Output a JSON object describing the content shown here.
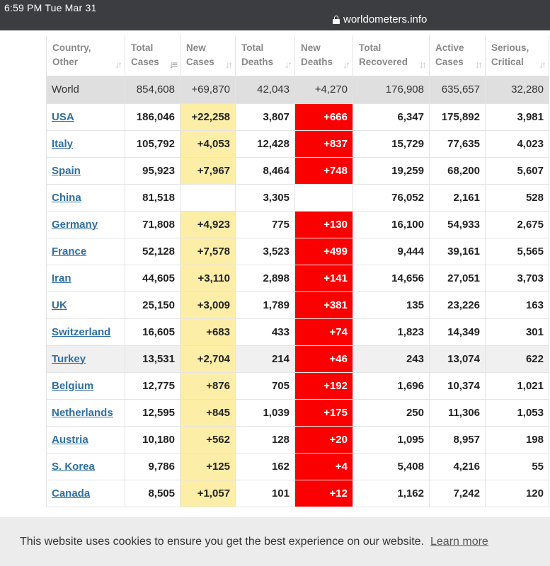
{
  "status": {
    "time": "6:59 PM   Tue Mar 31",
    "url": "worldometers.info"
  },
  "headers": {
    "country": [
      "Country,",
      "Other"
    ],
    "total_cases": [
      "Total",
      "Cases"
    ],
    "new_cases": [
      "New",
      "Cases"
    ],
    "total_deaths": [
      "Total",
      "Deaths"
    ],
    "new_deaths": [
      "New",
      "Deaths"
    ],
    "total_recovered": [
      "Total",
      "Recovered"
    ],
    "active_cases": [
      "Active",
      "Cases"
    ],
    "serious_critical": [
      "Serious,",
      "Critical"
    ]
  },
  "world": {
    "country": "World",
    "total_cases": "854,608",
    "new_cases": "+69,870",
    "total_deaths": "42,043",
    "new_deaths": "+4,270",
    "total_recovered": "176,908",
    "active_cases": "635,657",
    "serious_critical": "32,280"
  },
  "rows": [
    {
      "country": "USA",
      "total_cases": "186,046",
      "new_cases": "+22,258",
      "total_deaths": "3,807",
      "new_deaths": "+666",
      "total_recovered": "6,347",
      "active_cases": "175,892",
      "serious_critical": "3,981"
    },
    {
      "country": "Italy",
      "total_cases": "105,792",
      "new_cases": "+4,053",
      "total_deaths": "12,428",
      "new_deaths": "+837",
      "total_recovered": "15,729",
      "active_cases": "77,635",
      "serious_critical": "4,023"
    },
    {
      "country": "Spain",
      "total_cases": "95,923",
      "new_cases": "+7,967",
      "total_deaths": "8,464",
      "new_deaths": "+748",
      "total_recovered": "19,259",
      "active_cases": "68,200",
      "serious_critical": "5,607"
    },
    {
      "country": "China",
      "total_cases": "81,518",
      "new_cases": "",
      "total_deaths": "3,305",
      "new_deaths": "",
      "total_recovered": "76,052",
      "active_cases": "2,161",
      "serious_critical": "528"
    },
    {
      "country": "Germany",
      "total_cases": "71,808",
      "new_cases": "+4,923",
      "total_deaths": "775",
      "new_deaths": "+130",
      "total_recovered": "16,100",
      "active_cases": "54,933",
      "serious_critical": "2,675"
    },
    {
      "country": "France",
      "total_cases": "52,128",
      "new_cases": "+7,578",
      "total_deaths": "3,523",
      "new_deaths": "+499",
      "total_recovered": "9,444",
      "active_cases": "39,161",
      "serious_critical": "5,565"
    },
    {
      "country": "Iran",
      "total_cases": "44,605",
      "new_cases": "+3,110",
      "total_deaths": "2,898",
      "new_deaths": "+141",
      "total_recovered": "14,656",
      "active_cases": "27,051",
      "serious_critical": "3,703"
    },
    {
      "country": "UK",
      "total_cases": "25,150",
      "new_cases": "+3,009",
      "total_deaths": "1,789",
      "new_deaths": "+381",
      "total_recovered": "135",
      "active_cases": "23,226",
      "serious_critical": "163"
    },
    {
      "country": "Switzerland",
      "total_cases": "16,605",
      "new_cases": "+683",
      "total_deaths": "433",
      "new_deaths": "+74",
      "total_recovered": "1,823",
      "active_cases": "14,349",
      "serious_critical": "301"
    },
    {
      "country": "Turkey",
      "total_cases": "13,531",
      "new_cases": "+2,704",
      "total_deaths": "214",
      "new_deaths": "+46",
      "total_recovered": "243",
      "active_cases": "13,074",
      "serious_critical": "622",
      "shaded": true
    },
    {
      "country": "Belgium",
      "total_cases": "12,775",
      "new_cases": "+876",
      "total_deaths": "705",
      "new_deaths": "+192",
      "total_recovered": "1,696",
      "active_cases": "10,374",
      "serious_critical": "1,021"
    },
    {
      "country": "Netherlands",
      "total_cases": "12,595",
      "new_cases": "+845",
      "total_deaths": "1,039",
      "new_deaths": "+175",
      "total_recovered": "250",
      "active_cases": "11,306",
      "serious_critical": "1,053"
    },
    {
      "country": "Austria",
      "total_cases": "10,180",
      "new_cases": "+562",
      "total_deaths": "128",
      "new_deaths": "+20",
      "total_recovered": "1,095",
      "active_cases": "8,957",
      "serious_critical": "198"
    },
    {
      "country": "S. Korea",
      "total_cases": "9,786",
      "new_cases": "+125",
      "total_deaths": "162",
      "new_deaths": "+4",
      "total_recovered": "5,408",
      "active_cases": "4,216",
      "serious_critical": "55"
    },
    {
      "country": "Canada",
      "total_cases": "8,505",
      "new_cases": "+1,057",
      "total_deaths": "101",
      "new_deaths": "+12",
      "total_recovered": "1,162",
      "active_cases": "7,242",
      "serious_critical": "120"
    }
  ],
  "cookie": {
    "message": "This website uses cookies to ensure you get the best experience on our website.",
    "learn_more": "Learn more"
  },
  "colors": {
    "new_cases_bg": "#fdeea7",
    "new_deaths_bg": "#fb0000",
    "link": "#2f6fa0",
    "status_bar": "#3b3d40"
  },
  "icons": {
    "lock": "lock-icon",
    "sort": "sort-arrows-icon"
  }
}
